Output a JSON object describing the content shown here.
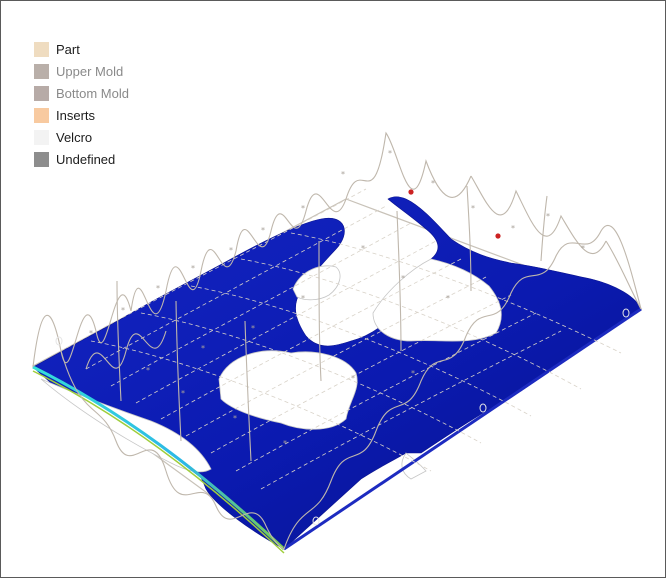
{
  "legend": {
    "items": [
      {
        "label": "Part",
        "color": "#efdcc0",
        "text_style": "dark"
      },
      {
        "label": "Upper Mold",
        "color": "#b9afa9",
        "text_style": "dim"
      },
      {
        "label": "Bottom Mold",
        "color": "#b7aba7",
        "text_style": "dim"
      },
      {
        "label": "Inserts",
        "color": "#f8caa0",
        "text_style": "dark"
      },
      {
        "label": "Velcro",
        "color": "#f3f3f3",
        "text_style": "dark"
      },
      {
        "label": "Undefined",
        "color": "#8d8d8d",
        "text_style": "dark"
      }
    ]
  },
  "scene": {
    "fill_color": "#0a1aa8",
    "fill_dark": "#04107a",
    "edge_color": "#2fd1e0",
    "edge_bottom_color": "#9fce3c",
    "mesh_color": "#c9c2b8",
    "marker_color": "#cc2222"
  }
}
